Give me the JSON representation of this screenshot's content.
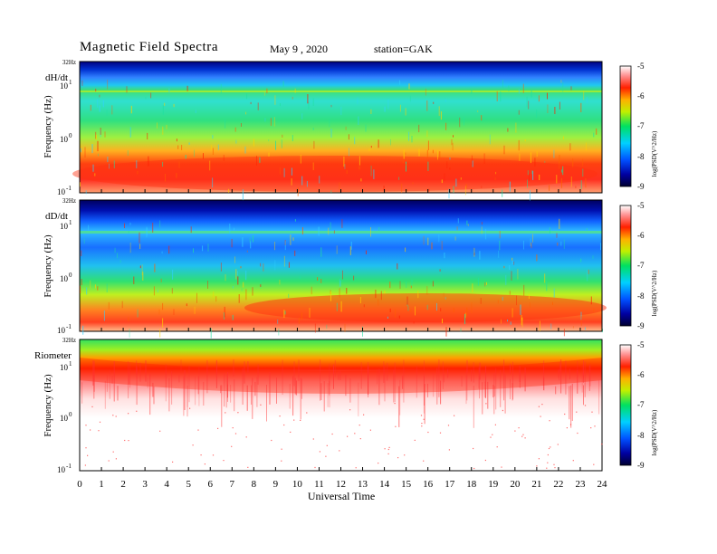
{
  "header": {
    "title": "Magnetic  Field  Spectra",
    "date": "May 9  , 2020",
    "station": "station=GAK"
  },
  "chart_data": [
    {
      "type": "heatmap",
      "panel_label": "dH/dt",
      "ylabel": "Frequency  (Hz)",
      "top_label": "32Hz",
      "ytick_base": "10",
      "ytick_exponents": [
        "1",
        "0",
        "-1"
      ],
      "ylim": [
        0.1,
        32
      ],
      "yscale": "log",
      "x_range": [
        0,
        24
      ],
      "colorbar": {
        "label": "log(PSD(V^2/Hz)",
        "ticks": [
          "-5",
          "-6",
          "-7",
          "-8",
          "-9"
        ],
        "range": [
          -9,
          -5
        ]
      }
    },
    {
      "type": "heatmap",
      "panel_label": "dD/dt",
      "ylabel": "Frequency  (Hz)",
      "top_label": "32Hz",
      "ytick_base": "10",
      "ytick_exponents": [
        "1",
        "0",
        "-1"
      ],
      "ylim": [
        0.1,
        32
      ],
      "yscale": "log",
      "x_range": [
        0,
        24
      ],
      "colorbar": {
        "label": "log(PSD(V^2/Hz)",
        "ticks": [
          "-5",
          "-6",
          "-7",
          "-8",
          "-9"
        ],
        "range": [
          -9,
          -5
        ]
      }
    },
    {
      "type": "heatmap",
      "panel_label": "Riometer",
      "ylabel": "Frequency  (Hz)",
      "top_label": "32Hz",
      "ytick_base": "10",
      "ytick_exponents": [
        "1",
        "0",
        "-1"
      ],
      "ylim": [
        0.1,
        32
      ],
      "yscale": "log",
      "x_range": [
        0,
        24
      ],
      "xlabel": "Universal Time",
      "xticks": [
        "0",
        "1",
        "2",
        "3",
        "4",
        "5",
        "6",
        "7",
        "8",
        "9",
        "10",
        "11",
        "12",
        "13",
        "14",
        "15",
        "16",
        "17",
        "18",
        "19",
        "20",
        "21",
        "22",
        "23",
        "24"
      ],
      "colorbar": {
        "label": "log(PSD(V^2/Hz)",
        "ticks": [
          "-5",
          "-6",
          "-7",
          "-8",
          "-9"
        ],
        "range": [
          -9,
          -5
        ]
      }
    }
  ]
}
